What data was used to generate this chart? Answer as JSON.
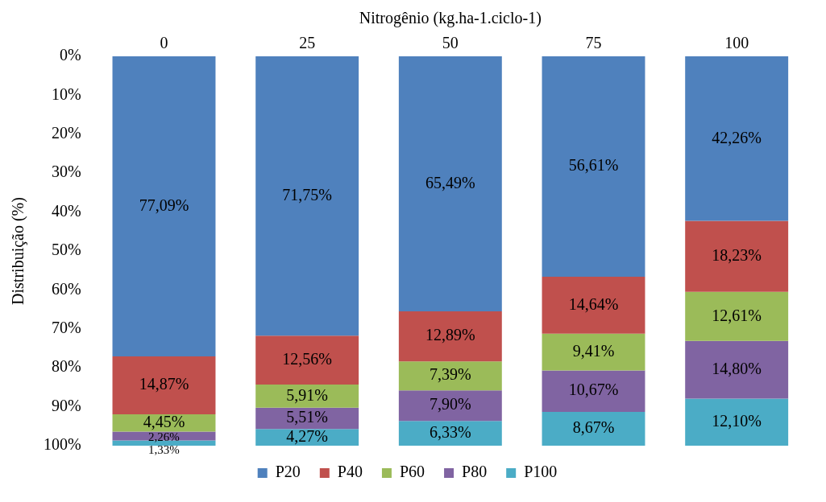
{
  "chart_data": {
    "type": "bar",
    "stacked": true,
    "xlabel": "Nitrogênio (kg.ha-1.ciclo-1)",
    "ylabel": "Distribuição (%)",
    "categories": [
      "0",
      "25",
      "50",
      "75",
      "100"
    ],
    "ylim": [
      100,
      0
    ],
    "yticks": [
      {
        "value": 0,
        "label": "0%"
      },
      {
        "value": 10,
        "label": "10%"
      },
      {
        "value": 20,
        "label": "20%"
      },
      {
        "value": 30,
        "label": "30%"
      },
      {
        "value": 40,
        "label": "40%"
      },
      {
        "value": 50,
        "label": "50%"
      },
      {
        "value": 60,
        "label": "60%"
      },
      {
        "value": 70,
        "label": "70%"
      },
      {
        "value": 80,
        "label": "80%"
      },
      {
        "value": 90,
        "label": "90%"
      },
      {
        "value": 100,
        "label": "100%"
      }
    ],
    "grid": false,
    "legend": "bottom",
    "series": [
      {
        "name": "P20",
        "color": "#4f81bd",
        "values": [
          77.09,
          71.75,
          65.49,
          56.61,
          42.26
        ],
        "value_labels": [
          "77,09%",
          "71,75%",
          "65,49%",
          "56,61%",
          "42,26%"
        ]
      },
      {
        "name": "P40",
        "color": "#c0504d",
        "values": [
          14.87,
          12.56,
          12.89,
          14.64,
          18.23
        ],
        "value_labels": [
          "14,87%",
          "12,56%",
          "12,89%",
          "14,64%",
          "18,23%"
        ]
      },
      {
        "name": "P60",
        "color": "#9bbb59",
        "values": [
          4.45,
          5.91,
          7.39,
          9.41,
          12.61
        ],
        "value_labels": [
          "4,45%",
          "5,91%",
          "7,39%",
          "9,41%",
          "12,61%"
        ]
      },
      {
        "name": "P80",
        "color": "#8064a2",
        "values": [
          2.26,
          5.51,
          7.9,
          10.67,
          14.8
        ],
        "value_labels": [
          "2,26%",
          "5,51%",
          "7,90%",
          "10,67%",
          "14,80%"
        ]
      },
      {
        "name": "P100",
        "color": "#4bacc6",
        "values": [
          1.33,
          4.27,
          6.33,
          8.67,
          12.1
        ],
        "value_labels": [
          "1,33%",
          "4,27%",
          "6,33%",
          "8,67%",
          "12,10%"
        ]
      }
    ]
  }
}
